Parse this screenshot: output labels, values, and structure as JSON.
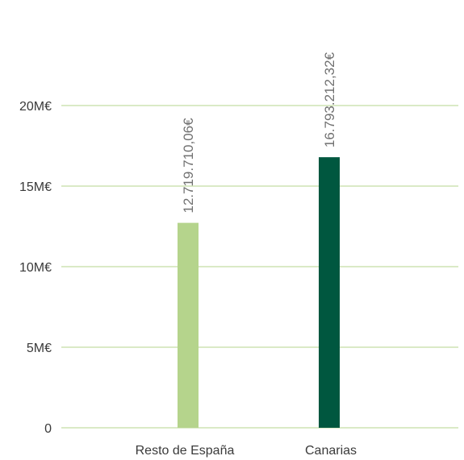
{
  "chart_data": {
    "type": "bar",
    "categories": [
      "Resto de España",
      "Canarias"
    ],
    "values": [
      12719710.06,
      16793212.32
    ],
    "data_labels": [
      "12.719.710,06€",
      "16.793.212,32€"
    ],
    "bar_colors": [
      "#b5d48c",
      "#00573f"
    ],
    "ylim": [
      0,
      20000000
    ],
    "y_ticks": [
      0,
      5000000,
      10000000,
      15000000,
      20000000
    ],
    "y_tick_labels": [
      "0",
      "5M€",
      "10M€",
      "15M€",
      "20M€"
    ],
    "grid": true,
    "grid_color": "#b5d48c",
    "legend": "none"
  }
}
